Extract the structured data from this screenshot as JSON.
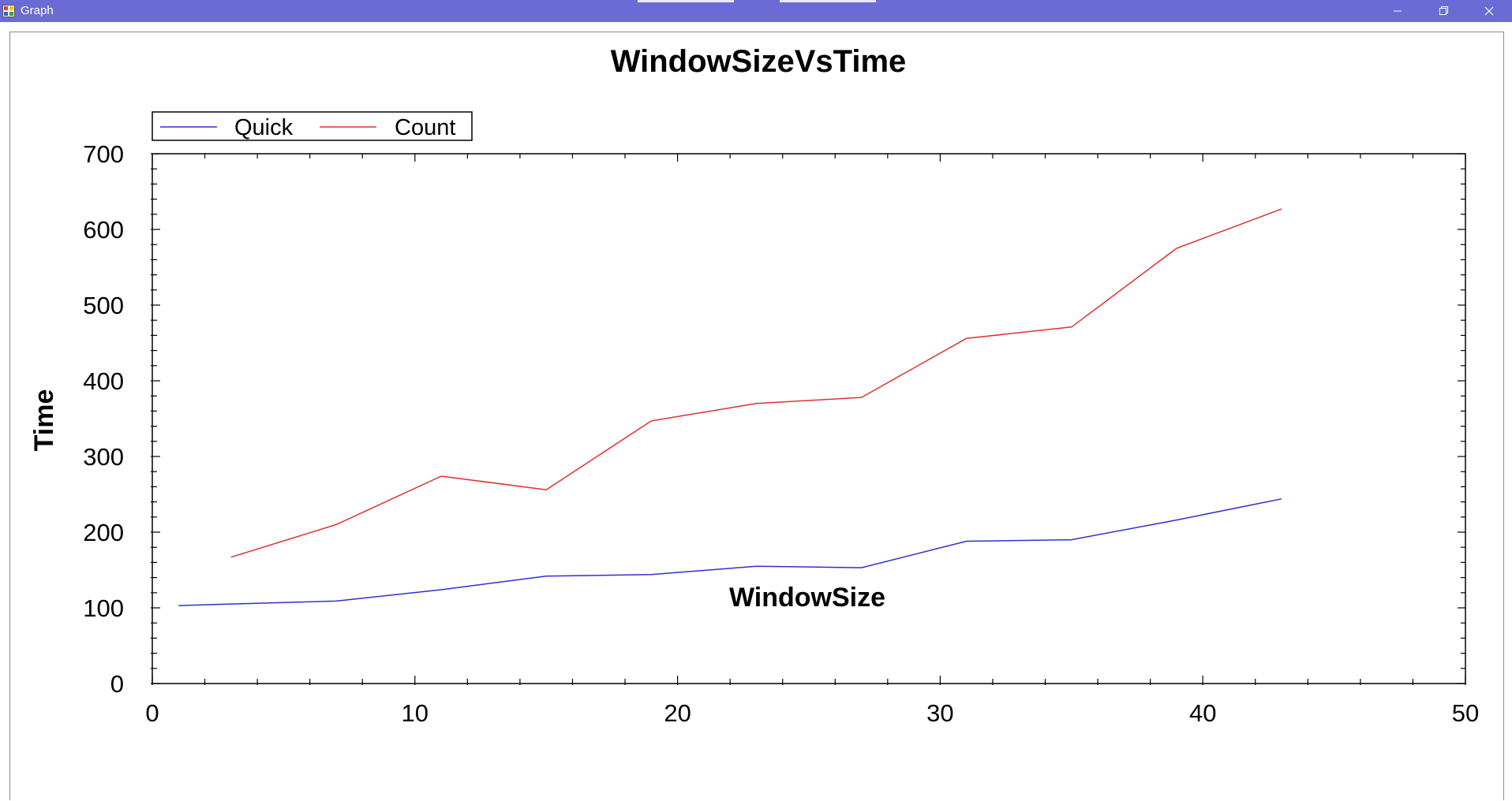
{
  "window": {
    "title": "Graph",
    "controls": [
      "minimize-icon",
      "restore-icon",
      "close-icon"
    ],
    "titlebar_color": "#6b6bd6"
  },
  "chart_data": {
    "type": "line",
    "title": "WindowSizeVsTime",
    "xlabel": "WindowSize",
    "ylabel": "Time",
    "xlim": [
      0,
      50
    ],
    "ylim": [
      0,
      700
    ],
    "xticks": [
      0,
      10,
      20,
      30,
      40,
      50
    ],
    "yticks": [
      0,
      100,
      200,
      300,
      400,
      500,
      600,
      700
    ],
    "legend_position": "top-left",
    "grid": false,
    "series": [
      {
        "name": "Quick",
        "color": "#3030d0",
        "x": [
          1,
          7,
          11,
          15,
          19,
          23,
          27,
          31,
          35,
          39,
          43
        ],
        "y": [
          103,
          109,
          124,
          142,
          144,
          155,
          153,
          188,
          190,
          216,
          244
        ]
      },
      {
        "name": "Count",
        "color": "#e03030",
        "x": [
          3,
          7,
          11,
          15,
          19,
          23,
          27,
          31,
          35,
          39,
          43
        ],
        "y": [
          167,
          210,
          274,
          256,
          347,
          370,
          378,
          456,
          471,
          575,
          627
        ]
      }
    ]
  }
}
